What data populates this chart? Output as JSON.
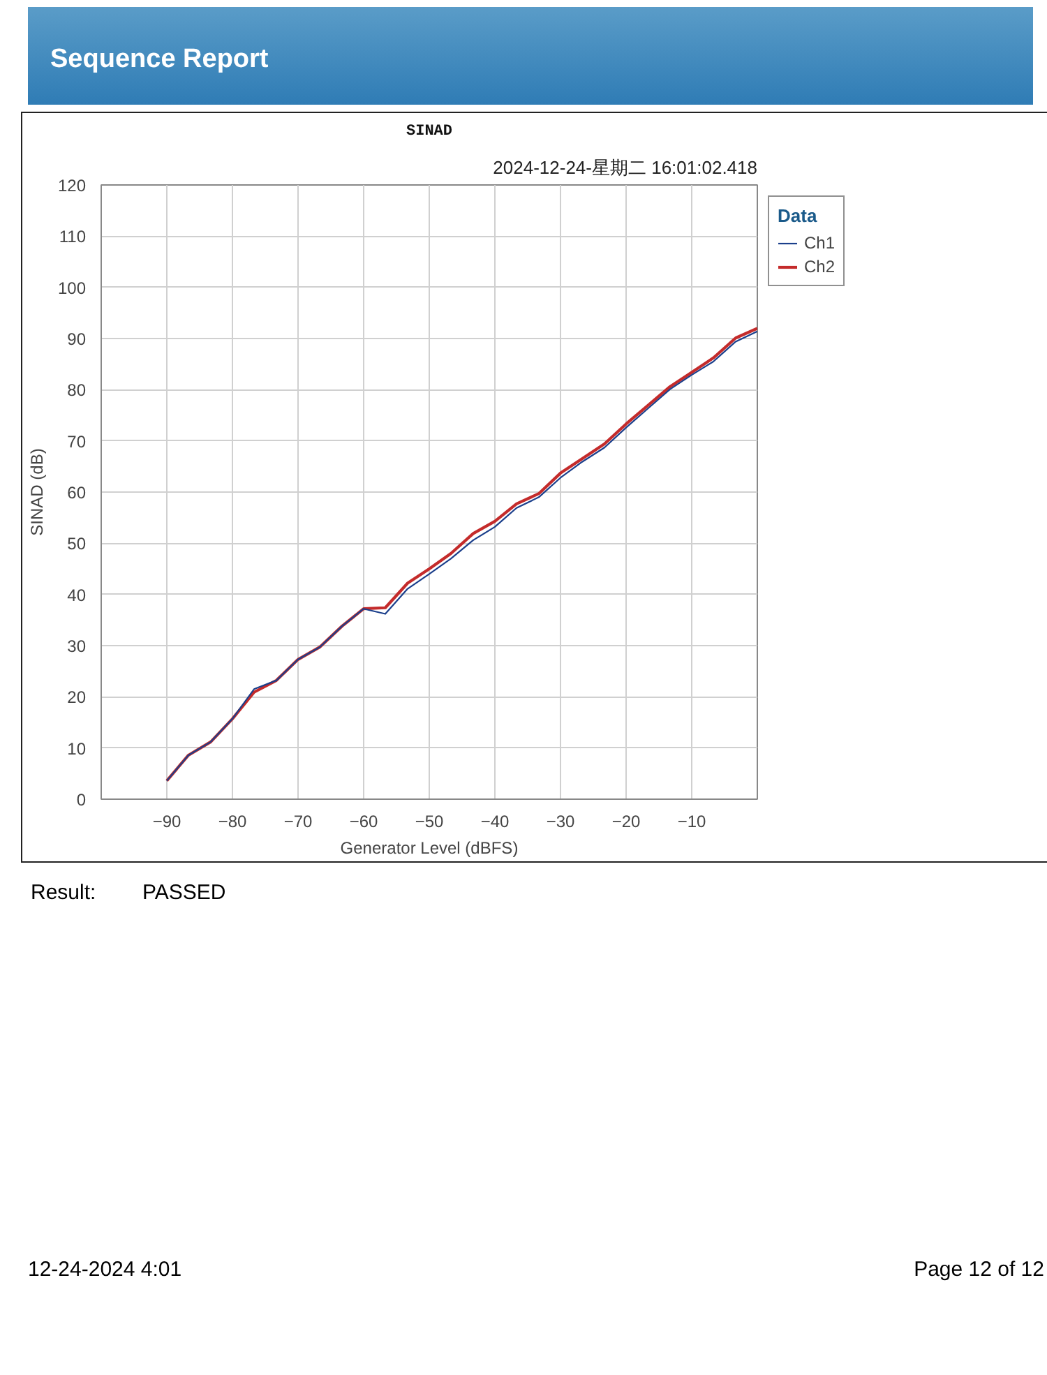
{
  "chart_data": {
    "type": "line",
    "title": "SINAD",
    "subtitle": "2024-12-24-星期二 16:01:02.418",
    "xlabel": "Generator Level (dBFS)",
    "ylabel": "SINAD (dB)",
    "legend_title": "Data",
    "x": [
      -90,
      -86.7,
      -83.3,
      -80,
      -76.7,
      -73.3,
      -70,
      -66.7,
      -63.3,
      -60,
      -56.7,
      -53.3,
      -50,
      -46.7,
      -43.3,
      -40,
      -36.7,
      -33.3,
      -30,
      -26.7,
      -23.3,
      -20,
      -16.7,
      -13.3,
      -10,
      -6.7,
      -3.3,
      0
    ],
    "series": [
      {
        "name": "Ch1",
        "color": "#1b3f8b",
        "values": [
          3.6,
          8.6,
          11.2,
          15.7,
          21.5,
          23.2,
          27.3,
          29.7,
          33.8,
          37.2,
          36.2,
          41.1,
          44.0,
          47.0,
          50.6,
          53.2,
          56.9,
          59.0,
          62.8,
          65.9,
          68.7,
          72.6,
          76.3,
          80.1,
          82.9,
          85.5,
          89.4,
          91.4
        ]
      },
      {
        "name": "Ch2",
        "color": "#c42b2b",
        "values": [
          3.6,
          8.6,
          11.2,
          15.7,
          20.9,
          23.2,
          27.3,
          29.7,
          33.8,
          37.2,
          37.4,
          42.2,
          45.0,
          48.0,
          51.9,
          54.3,
          57.7,
          59.7,
          63.7,
          66.5,
          69.4,
          73.3,
          76.9,
          80.6,
          83.4,
          86.2,
          90.1,
          92.0
        ]
      }
    ],
    "xlim": [
      -100,
      0
    ],
    "xticks": [
      -90,
      -80,
      -70,
      -60,
      -50,
      -40,
      -30,
      -20,
      -10
    ],
    "ylim": [
      0,
      120
    ],
    "yticks": [
      0,
      10,
      20,
      30,
      40,
      50,
      60,
      70,
      80,
      90,
      100,
      110,
      120
    ],
    "grid": true,
    "legend": "top right",
    "marker": "none",
    "line_style": "solid",
    "annotations": [
      "Sequence Report",
      "Result:",
      "PASSED",
      "12-24-2024 4:01",
      "Page 12 of 12"
    ]
  }
}
